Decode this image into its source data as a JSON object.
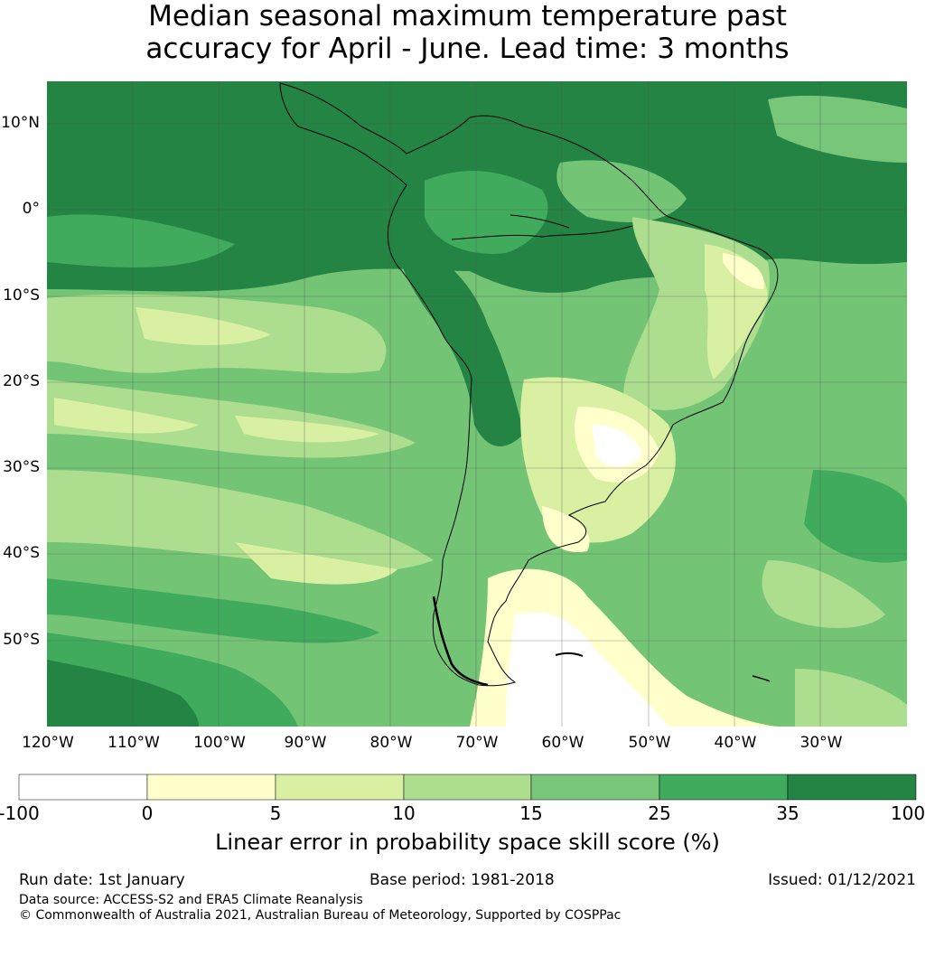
{
  "title": {
    "line1": "Median seasonal maximum temperature past",
    "line2": "accuracy for April - June. Lead time: 3 months"
  },
  "map": {
    "lat_labels": [
      "10°N",
      "0°",
      "10°S",
      "20°S",
      "30°S",
      "40°S",
      "50°S"
    ],
    "lon_labels": [
      "120°W",
      "110°W",
      "100°W",
      "90°W",
      "80°W",
      "70°W",
      "60°W",
      "50°W",
      "40°W",
      "30°W"
    ],
    "ocean_base_color": "#74c476",
    "coastline_color": "#000000"
  },
  "colorbar": {
    "ticks": [
      "-100",
      "0",
      "5",
      "10",
      "15",
      "25",
      "35",
      "100"
    ],
    "colors": [
      "#ffffff",
      "#ffffcc",
      "#d9f0a3",
      "#addd8e",
      "#78c679",
      "#41ab5d",
      "#238443"
    ],
    "label": "Linear error in probability space skill score (%)"
  },
  "footer": {
    "run_date": "Run date: 1st January",
    "base_period": "Base period: 1981-2018",
    "issued": "Issued: 01/12/2021",
    "data_source": "Data source: ACCESS-S2 and ERA5 Climate Reanalysis",
    "copyright": "© Commonwealth of Australia 2021, Australian Bureau of Meteorology, Supported by COSPPac"
  }
}
